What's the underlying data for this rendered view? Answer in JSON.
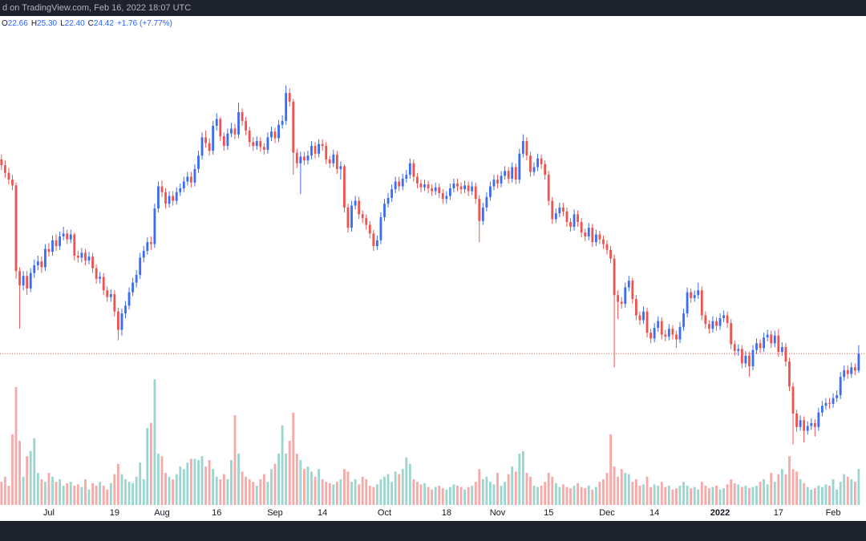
{
  "header": {
    "caption": "d on TradingView.com, Feb 16, 2022 18:07 UTC",
    "ohlc": [
      {
        "label": "O",
        "value": "22.66"
      },
      {
        "label": "H",
        "value": "25.30"
      },
      {
        "label": "L",
        "value": "22.40"
      },
      {
        "label": "C",
        "value": "24.42"
      }
    ],
    "change": "+1.76 (+7.77%)"
  },
  "chart_data": {
    "type": "candlestick",
    "up_color": "#3a6cf4",
    "down_color": "#ef5350",
    "volume_up_color": "#9ad6cf",
    "volume_down_color": "#f7a9a7",
    "price_line_color": "#ef5350",
    "xlim": [
      -0.4,
      237
    ],
    "ylim": [
      8.7,
      59.5
    ],
    "volume_ylim": [
      0,
      100
    ],
    "price_line": 24.42,
    "xticks": [
      {
        "value": 13,
        "label": "Jul"
      },
      {
        "value": 31,
        "label": "19"
      },
      {
        "value": 44,
        "label": "Aug"
      },
      {
        "value": 59,
        "label": "16"
      },
      {
        "value": 75,
        "label": "Sep"
      },
      {
        "value": 88,
        "label": "14"
      },
      {
        "value": 105,
        "label": "Oct"
      },
      {
        "value": 122,
        "label": "18"
      },
      {
        "value": 136,
        "label": "Nov"
      },
      {
        "value": 150,
        "label": "15"
      },
      {
        "value": 166,
        "label": "Dec"
      },
      {
        "value": 179,
        "label": "14"
      },
      {
        "value": 197,
        "label": "2022"
      },
      {
        "value": 213,
        "label": "17"
      },
      {
        "value": 228,
        "label": "Feb"
      }
    ],
    "open": [
      44.6,
      44.0,
      43.2,
      42.5,
      41.9,
      33.0,
      31.5,
      32.5,
      31.2,
      32.8,
      33.6,
      34.0,
      33.4,
      35.3,
      35.0,
      36.2,
      35.6,
      36.6,
      36.9,
      36.3,
      36.8,
      34.6,
      34.4,
      34.9,
      34.1,
      34.5,
      33.3,
      32.2,
      32.4,
      31.0,
      30.3,
      30.6,
      28.8,
      26.9,
      28.6,
      29.4,
      30.8,
      31.8,
      32.6,
      34.4,
      35.1,
      36.0,
      35.8,
      39.5,
      41.8,
      41.2,
      40.0,
      40.8,
      40.3,
      41.2,
      41.6,
      42.3,
      42.8,
      42.2,
      43.6,
      45.0,
      46.9,
      46.3,
      45.5,
      48.1,
      48.8,
      47.0,
      46.0,
      47.3,
      47.8,
      47.2,
      49.5,
      48.6,
      47.6,
      46.4,
      46.0,
      46.5,
      45.9,
      45.6,
      46.9,
      47.5,
      46.8,
      48.2,
      48.6,
      51.5,
      50.6,
      45.3,
      44.2,
      44.9,
      44.5,
      45.0,
      46.0,
      45.2,
      46.2,
      46.0,
      44.6,
      44.2,
      45.1,
      43.6,
      43.9,
      39.6,
      37.5,
      39.8,
      40.3,
      38.9,
      38.5,
      37.8,
      36.9,
      35.6,
      36.2,
      38.6,
      40.0,
      40.6,
      41.5,
      42.3,
      41.8,
      42.6,
      43.0,
      44.2,
      42.8,
      42.1,
      41.7,
      42.0,
      41.6,
      41.3,
      41.7,
      41.1,
      40.5,
      40.8,
      41.6,
      42.1,
      41.8,
      41.5,
      41.9,
      41.3,
      41.8,
      40.5,
      38.2,
      39.6,
      40.7,
      41.8,
      42.5,
      42.1,
      42.9,
      43.4,
      42.6,
      43.8,
      42.5,
      45.2,
      46.5,
      45.0,
      43.3,
      43.8,
      44.7,
      44.1,
      43.0,
      40.3,
      38.4,
      39.0,
      39.6,
      39.2,
      38.1,
      37.6,
      38.9,
      38.1,
      37.0,
      36.6,
      37.5,
      36.0,
      36.8,
      36.3,
      35.8,
      35.2,
      34.3,
      30.5,
      29.8,
      29.6,
      31.3,
      32.0,
      30.1,
      28.4,
      27.9,
      28.8,
      26.6,
      26.0,
      27.1,
      27.8,
      26.4,
      26.2,
      27.0,
      26.4,
      25.9,
      27.2,
      28.6,
      30.8,
      30.2,
      30.5,
      31.0,
      28.4,
      27.5,
      27.0,
      27.8,
      27.3,
      28.1,
      28.4,
      27.6,
      25.4,
      24.7,
      24.9,
      23.4,
      24.2,
      23.1,
      24.8,
      25.5,
      25.0,
      26.1,
      26.4,
      25.5,
      26.3,
      24.6,
      25.1,
      23.6,
      21.0,
      18.2,
      16.8,
      17.5,
      16.4,
      16.9,
      17.2,
      16.8,
      18.3,
      19.0,
      19.3,
      19.2,
      19.8,
      20.1,
      22.0,
      22.7,
      22.3,
      23.0,
      22.66
    ],
    "high": [
      45.1,
      44.5,
      43.7,
      43.0,
      42.2,
      33.4,
      33.0,
      33.0,
      33.3,
      34.2,
      34.6,
      34.5,
      35.8,
      35.9,
      36.7,
      36.8,
      37.1,
      37.6,
      37.3,
      37.3,
      37.0,
      35.1,
      35.4,
      35.3,
      35.0,
      34.9,
      33.7,
      32.9,
      32.8,
      31.4,
      31.1,
      31.0,
      29.2,
      29.1,
      29.9,
      31.3,
      32.3,
      33.1,
      34.9,
      35.6,
      36.5,
      36.6,
      40.0,
      42.3,
      42.4,
      41.6,
      41.3,
      41.3,
      41.7,
      42.1,
      42.8,
      43.3,
      43.3,
      44.1,
      45.5,
      47.4,
      47.6,
      46.8,
      48.6,
      49.4,
      49.0,
      47.4,
      47.8,
      48.4,
      48.3,
      50.5,
      49.9,
      49.0,
      48.0,
      46.9,
      47.0,
      46.9,
      46.3,
      47.4,
      48.0,
      47.9,
      48.7,
      49.2,
      52.3,
      52.0,
      50.9,
      45.7,
      45.4,
      45.4,
      45.5,
      46.5,
      46.4,
      46.7,
      46.7,
      46.4,
      45.0,
      45.6,
      45.5,
      44.4,
      44.1,
      40.0,
      40.3,
      40.8,
      40.7,
      39.3,
      38.9,
      38.2,
      37.3,
      36.7,
      39.1,
      40.5,
      41.1,
      42.0,
      42.8,
      42.8,
      43.1,
      43.5,
      44.7,
      44.6,
      43.2,
      42.5,
      42.5,
      42.4,
      42.0,
      42.2,
      42.1,
      41.5,
      41.3,
      42.1,
      42.6,
      42.6,
      42.2,
      42.4,
      42.3,
      42.3,
      42.2,
      40.9,
      40.1,
      41.2,
      42.3,
      43.0,
      43.0,
      43.4,
      43.9,
      43.8,
      44.3,
      44.2,
      45.7,
      47.2,
      46.9,
      45.4,
      44.3,
      45.2,
      45.1,
      44.5,
      43.4,
      40.7,
      39.5,
      40.1,
      40.1,
      39.6,
      38.5,
      39.4,
      39.3,
      38.5,
      37.4,
      38.0,
      37.9,
      37.3,
      37.2,
      36.7,
      36.2,
      35.6,
      34.7,
      31.0,
      30.3,
      31.8,
      32.5,
      32.3,
      30.5,
      28.8,
      29.3,
      29.2,
      27.0,
      27.6,
      28.3,
      28.2,
      26.9,
      27.5,
      27.4,
      26.8,
      27.7,
      29.1,
      31.3,
      31.2,
      31.0,
      31.8,
      31.4,
      28.8,
      27.9,
      28.3,
      28.2,
      28.6,
      28.9,
      28.8,
      28.0,
      25.8,
      25.4,
      25.3,
      24.7,
      24.6,
      25.3,
      26.0,
      25.9,
      26.6,
      26.9,
      26.8,
      26.8,
      27.0,
      25.6,
      25.5,
      24.0,
      21.4,
      18.6,
      18.0,
      17.9,
      17.4,
      17.7,
      17.6,
      18.8,
      19.5,
      19.8,
      19.8,
      20.3,
      20.6,
      22.5,
      23.2,
      23.2,
      23.5,
      23.4,
      25.3
    ],
    "low": [
      43.5,
      42.7,
      42.0,
      41.4,
      32.2,
      27.0,
      31.0,
      30.5,
      30.8,
      32.3,
      33.1,
      32.8,
      33.0,
      34.5,
      34.6,
      35.1,
      35.2,
      36.2,
      35.8,
      35.9,
      34.1,
      33.9,
      33.9,
      33.6,
      33.7,
      32.8,
      31.7,
      31.7,
      30.5,
      29.8,
      29.8,
      28.3,
      25.8,
      26.3,
      28.1,
      29.0,
      30.4,
      31.3,
      32.2,
      33.9,
      34.7,
      35.2,
      35.4,
      39.1,
      40.7,
      39.5,
      39.6,
      39.8,
      39.9,
      40.8,
      41.2,
      41.9,
      41.7,
      41.8,
      43.2,
      44.6,
      45.8,
      45.0,
      45.1,
      47.6,
      46.5,
      45.5,
      45.6,
      46.9,
      46.7,
      46.8,
      48.1,
      47.1,
      45.9,
      45.5,
      45.6,
      45.4,
      45.1,
      45.2,
      46.5,
      46.3,
      46.4,
      47.8,
      48.2,
      50.1,
      43.0,
      43.7,
      41.0,
      44.0,
      44.1,
      44.6,
      44.7,
      44.8,
      45.5,
      44.1,
      43.7,
      43.8,
      43.1,
      42.5,
      39.1,
      37.0,
      37.1,
      39.4,
      38.4,
      38.0,
      37.3,
      36.4,
      35.1,
      35.2,
      35.8,
      38.2,
      39.6,
      40.2,
      41.1,
      41.3,
      41.4,
      42.2,
      42.6,
      42.3,
      41.6,
      41.2,
      41.3,
      41.1,
      40.8,
      40.9,
      40.6,
      40.0,
      40.0,
      40.4,
      41.2,
      41.3,
      41.0,
      41.1,
      40.8,
      40.9,
      40.0,
      36.0,
      37.8,
      39.2,
      40.3,
      41.4,
      41.6,
      41.7,
      42.5,
      42.1,
      42.2,
      42.0,
      42.1,
      44.8,
      44.5,
      42.8,
      42.9,
      43.4,
      43.6,
      42.5,
      39.8,
      37.9,
      38.0,
      38.6,
      38.7,
      37.6,
      37.1,
      37.2,
      37.6,
      36.5,
      36.1,
      36.2,
      35.5,
      35.6,
      35.8,
      35.3,
      34.7,
      33.8,
      23.0,
      28.0,
      29.1,
      29.2,
      30.9,
      29.6,
      27.9,
      27.4,
      27.5,
      26.1,
      25.5,
      25.6,
      26.7,
      25.9,
      25.7,
      25.8,
      25.9,
      25.0,
      25.5,
      26.8,
      28.2,
      29.7,
      29.8,
      30.1,
      27.9,
      27.0,
      26.5,
      26.6,
      26.8,
      26.9,
      27.7,
      27.1,
      24.9,
      24.2,
      24.2,
      22.9,
      23.0,
      22.0,
      22.7,
      24.4,
      24.5,
      24.6,
      25.7,
      25.0,
      25.1,
      24.1,
      24.2,
      23.1,
      20.5,
      15.0,
      16.3,
      16.4,
      15.2,
      16.0,
      16.5,
      15.8,
      16.4,
      17.9,
      18.6,
      18.7,
      18.8,
      19.4,
      19.7,
      21.6,
      21.8,
      21.9,
      22.2,
      22.4
    ],
    "close": [
      44.0,
      43.2,
      42.5,
      41.9,
      33.0,
      31.5,
      32.5,
      31.2,
      32.8,
      33.6,
      34.0,
      33.4,
      35.3,
      35.0,
      36.2,
      35.6,
      36.6,
      36.9,
      36.3,
      36.8,
      34.6,
      34.4,
      34.9,
      34.1,
      34.5,
      33.3,
      32.2,
      32.4,
      31.0,
      30.3,
      30.6,
      28.8,
      26.9,
      28.6,
      29.4,
      30.8,
      31.8,
      32.6,
      34.4,
      35.1,
      36.0,
      35.8,
      39.5,
      41.8,
      41.2,
      40.0,
      40.8,
      40.3,
      41.2,
      41.6,
      42.3,
      42.8,
      42.2,
      43.6,
      45.0,
      46.9,
      46.3,
      45.5,
      48.1,
      48.8,
      47.0,
      46.0,
      47.3,
      47.8,
      47.2,
      49.5,
      48.6,
      47.6,
      46.4,
      46.0,
      46.5,
      45.9,
      45.6,
      46.9,
      47.5,
      46.8,
      48.2,
      48.6,
      51.5,
      50.6,
      45.3,
      44.2,
      44.9,
      44.5,
      45.0,
      46.0,
      45.2,
      46.2,
      46.0,
      44.6,
      44.2,
      45.1,
      43.6,
      43.9,
      39.6,
      37.5,
      39.8,
      40.3,
      38.9,
      38.5,
      37.8,
      36.9,
      35.6,
      36.2,
      38.6,
      40.0,
      40.6,
      41.5,
      42.3,
      41.8,
      42.6,
      43.0,
      44.2,
      42.8,
      42.1,
      41.7,
      42.0,
      41.6,
      41.3,
      41.7,
      41.1,
      40.5,
      40.8,
      41.6,
      42.1,
      41.8,
      41.5,
      41.9,
      41.3,
      41.8,
      40.5,
      38.2,
      39.6,
      40.7,
      41.8,
      42.5,
      42.1,
      42.9,
      43.4,
      42.6,
      43.8,
      42.5,
      45.2,
      46.5,
      45.0,
      43.3,
      43.8,
      44.7,
      44.1,
      43.0,
      40.3,
      38.4,
      39.0,
      39.6,
      39.2,
      38.1,
      37.6,
      38.9,
      38.1,
      37.0,
      36.6,
      37.5,
      36.0,
      36.8,
      36.3,
      35.8,
      35.2,
      34.3,
      30.5,
      29.8,
      29.6,
      31.3,
      32.0,
      30.1,
      28.4,
      27.9,
      28.8,
      26.6,
      26.0,
      27.1,
      27.8,
      26.4,
      26.2,
      27.0,
      26.4,
      25.9,
      27.2,
      28.6,
      30.8,
      30.2,
      30.5,
      31.0,
      28.4,
      27.5,
      27.0,
      27.8,
      27.3,
      28.1,
      28.4,
      27.6,
      25.4,
      24.7,
      24.9,
      23.4,
      24.2,
      23.1,
      24.8,
      25.5,
      25.0,
      26.1,
      26.4,
      25.5,
      26.3,
      24.6,
      25.1,
      23.6,
      21.0,
      18.2,
      16.8,
      17.5,
      16.4,
      16.9,
      17.2,
      16.8,
      18.3,
      19.0,
      19.3,
      19.2,
      19.8,
      20.1,
      22.0,
      22.7,
      22.3,
      23.0,
      22.66,
      24.42
    ],
    "volume": [
      18,
      22,
      15,
      55,
      92,
      50,
      22,
      38,
      42,
      52,
      25,
      20,
      18,
      25,
      22,
      18,
      20,
      15,
      17,
      18,
      15,
      16,
      14,
      20,
      12,
      17,
      15,
      18,
      15,
      12,
      17,
      24,
      32,
      24,
      20,
      18,
      17,
      22,
      33,
      20,
      60,
      64,
      98,
      40,
      38,
      25,
      22,
      20,
      24,
      30,
      28,
      33,
      36,
      36,
      35,
      38,
      30,
      35,
      28,
      22,
      20,
      24,
      20,
      35,
      70,
      40,
      26,
      22,
      20,
      18,
      15,
      20,
      24,
      18,
      28,
      32,
      40,
      62,
      40,
      50,
      72,
      40,
      35,
      28,
      30,
      26,
      22,
      28,
      20,
      18,
      17,
      16,
      18,
      20,
      28,
      26,
      18,
      20,
      16,
      22,
      20,
      15,
      14,
      16,
      20,
      22,
      24,
      18,
      26,
      24,
      28,
      37,
      32,
      20,
      18,
      16,
      17,
      14,
      12,
      14,
      15,
      13,
      12,
      14,
      16,
      15,
      14,
      12,
      14,
      15,
      18,
      28,
      20,
      22,
      18,
      16,
      25,
      15,
      18,
      24,
      30,
      26,
      40,
      42,
      25,
      22,
      15,
      14,
      15,
      18,
      25,
      22,
      17,
      14,
      16,
      14,
      13,
      15,
      17,
      14,
      13,
      15,
      12,
      14,
      18,
      20,
      25,
      55,
      30,
      22,
      28,
      25,
      24,
      18,
      20,
      15,
      16,
      22,
      14,
      16,
      15,
      18,
      14,
      15,
      12,
      13,
      15,
      18,
      15,
      13,
      14,
      12,
      18,
      15,
      13,
      14,
      15,
      12,
      13,
      16,
      20,
      17,
      16,
      14,
      15,
      13,
      14,
      15,
      18,
      20,
      16,
      25,
      18,
      24,
      28,
      24,
      38,
      28,
      26,
      20,
      17,
      14,
      12,
      13,
      15,
      14,
      16,
      15,
      20,
      12,
      18,
      24,
      22,
      20,
      18,
      28
    ]
  }
}
